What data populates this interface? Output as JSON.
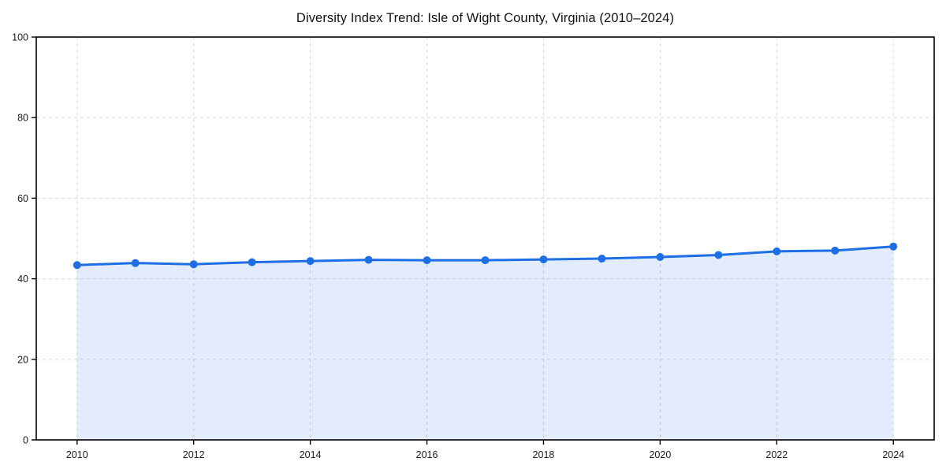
{
  "page": {
    "background": "#ffffff"
  },
  "chart_data": {
    "type": "area",
    "title": "Diversity Index Trend: Isle of Wight County, Virginia (2010–2024)",
    "xlabel": "",
    "ylabel": "",
    "x": [
      2010,
      2011,
      2012,
      2013,
      2014,
      2015,
      2016,
      2017,
      2018,
      2019,
      2020,
      2021,
      2022,
      2023,
      2024
    ],
    "series": [
      {
        "name": "Diversity Index",
        "values": [
          43.4,
          43.9,
          43.6,
          44.1,
          44.4,
          44.7,
          44.6,
          44.6,
          44.8,
          45.0,
          45.4,
          45.9,
          46.8,
          47.0,
          48.0
        ]
      }
    ],
    "xlim": [
      2009.3,
      2024.7
    ],
    "ylim": [
      0,
      100
    ],
    "xticks": [
      2010,
      2012,
      2014,
      2016,
      2018,
      2020,
      2022,
      2024
    ],
    "yticks": [
      0,
      20,
      40,
      60,
      80,
      100
    ],
    "grid": {
      "visible": true,
      "style": "dashed",
      "dash": "4 4"
    },
    "legend": "none",
    "marker_radius": 5,
    "line_width": 3,
    "colors": {
      "line": "#1e6ee4",
      "marker": "#1e6ee4",
      "fill": "rgba(31,110,228,0.13)",
      "grid": "#d9d9d9",
      "axis": "#000000",
      "tick_label": "#1a1a1a",
      "title": "#111111",
      "background": "#ffffff"
    }
  }
}
